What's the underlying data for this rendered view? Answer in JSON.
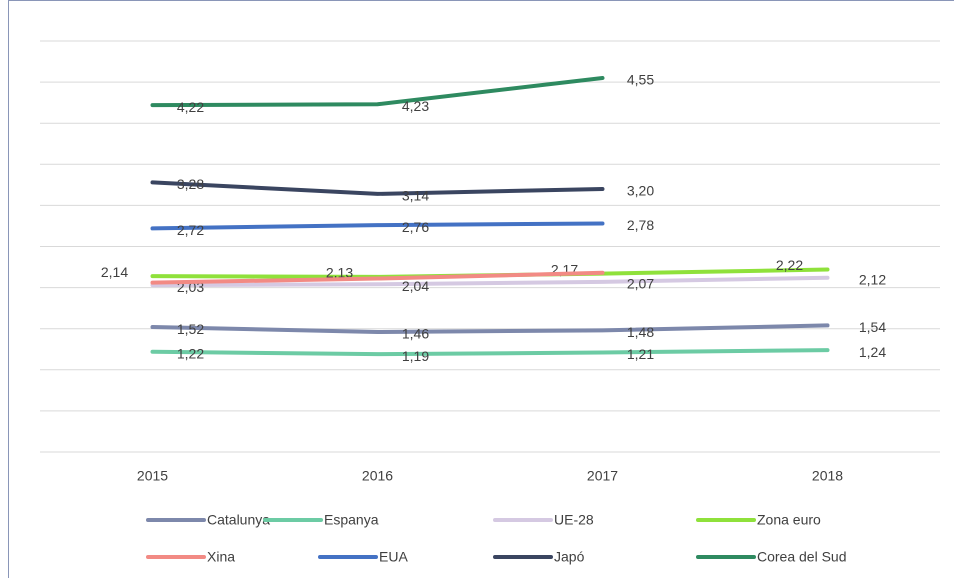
{
  "chart_data": {
    "type": "line",
    "categories": [
      "2015",
      "2016",
      "2017",
      "2018"
    ],
    "ylim": [
      0,
      5
    ],
    "yticks": [
      0,
      0.5,
      1,
      1.5,
      2,
      2.5,
      3,
      3.5,
      4,
      4.5,
      5
    ],
    "grid": true,
    "series": [
      {
        "name": "Catalunya",
        "color": "#7d88ab",
        "values": [
          1.52,
          1.46,
          1.48,
          1.54
        ],
        "value_labels": [
          "1,52",
          "1,46",
          "1,48",
          "1,54"
        ]
      },
      {
        "name": "Espanya",
        "color": "#6ccba4",
        "values": [
          1.22,
          1.19,
          1.21,
          1.24
        ],
        "value_labels": [
          "1,22",
          "1,19",
          "1,21",
          "1,24"
        ]
      },
      {
        "name": "UE-28",
        "color": "#d5c9e2",
        "values": [
          2.03,
          2.04,
          2.07,
          2.12
        ],
        "value_labels": [
          "2,03",
          "2,04",
          "2,07",
          "2,12"
        ]
      },
      {
        "name": "Zona euro",
        "color": "#8fe13b",
        "values": [
          2.14,
          2.13,
          2.17,
          2.22
        ],
        "value_labels": [
          "2,14",
          "2,13",
          "2,17",
          "2,22"
        ]
      },
      {
        "name": "Xina",
        "color": "#f28a84",
        "values": [
          2.06,
          2.11,
          2.18,
          null
        ]
      },
      {
        "name": "EUA",
        "color": "#4472c4",
        "values": [
          2.72,
          2.76,
          2.78,
          null
        ],
        "value_labels": [
          "2,72",
          "2,76",
          "2,78",
          null
        ]
      },
      {
        "name": "Japó",
        "color": "#3a4560",
        "values": [
          3.28,
          3.14,
          3.2,
          null
        ],
        "value_labels": [
          "3,28",
          "3,14",
          "3,20",
          null
        ]
      },
      {
        "name": "Corea del Sud",
        "color": "#2e8a60",
        "values": [
          4.22,
          4.23,
          4.55,
          null
        ],
        "value_labels": [
          "4,22",
          "4,23",
          "4,55",
          null
        ]
      }
    ]
  }
}
